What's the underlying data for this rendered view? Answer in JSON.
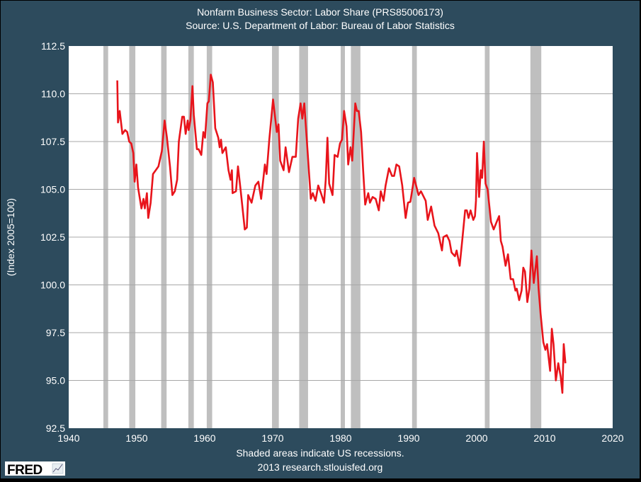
{
  "chart_data": {
    "type": "line",
    "title": "Nonfarm Business Sector: Labor Share (PRS85006173)",
    "subtitle": "Source: U.S. Department of Labor: Bureau of Labor Statistics",
    "xlabel": "",
    "ylabel": "(Index 2005=100)",
    "xlim": [
      1940,
      2020
    ],
    "ylim": [
      92.5,
      112.5
    ],
    "xticks": [
      "1940",
      "1950",
      "1960",
      "1970",
      "1980",
      "1990",
      "2000",
      "2010",
      "2020"
    ],
    "yticks": [
      "92.5",
      "95.0",
      "97.5",
      "100.0",
      "102.5",
      "105.0",
      "107.5",
      "110.0",
      "112.5"
    ],
    "grid": "horizontal",
    "colors": {
      "line": "#e8141b",
      "recession": "#bfbfbf",
      "background": "#2d4b5d",
      "plot": "#ffffff",
      "grid": "#a8a8a8"
    },
    "recessions": [
      [
        1945.1,
        1945.8
      ],
      [
        1948.9,
        1949.8
      ],
      [
        1953.6,
        1954.4
      ],
      [
        1957.6,
        1958.4
      ],
      [
        1960.3,
        1961.1
      ],
      [
        1969.9,
        1970.9
      ],
      [
        1973.9,
        1975.2
      ],
      [
        1980.0,
        1980.5
      ],
      [
        1981.5,
        1982.9
      ],
      [
        1990.5,
        1991.2
      ],
      [
        2001.2,
        2001.9
      ],
      [
        2007.9,
        2009.5
      ]
    ],
    "series": [
      {
        "x": [
          1947.15,
          1947.25,
          1947.5,
          1947.9,
          1948.3,
          1948.6,
          1948.9,
          1949.2,
          1949.5,
          1949.7,
          1949.95,
          1950.2,
          1950.7,
          1951.0,
          1951.2,
          1951.5,
          1951.7,
          1952.05,
          1952.4,
          1952.8,
          1953.2,
          1953.7,
          1954.1,
          1954.45,
          1954.9,
          1955.25,
          1955.6,
          1955.95,
          1956.2,
          1956.7,
          1956.95,
          1957.2,
          1957.5,
          1957.65,
          1957.9,
          1958.2,
          1958.4,
          1958.85,
          1959.1,
          1959.5,
          1959.8,
          1960.05,
          1960.4,
          1960.6,
          1960.9,
          1961.2,
          1961.55,
          1962.0,
          1962.2,
          1962.4,
          1962.6,
          1963.1,
          1963.5,
          1963.8,
          1964.0,
          1964.1,
          1964.6,
          1964.9,
          1965.3,
          1965.9,
          1966.2,
          1966.4,
          1966.9,
          1967.45,
          1967.9,
          1968.3,
          1968.85,
          1969.1,
          1969.5,
          1970.05,
          1970.6,
          1970.85,
          1971.1,
          1971.6,
          1971.9,
          1972.4,
          1972.9,
          1973.4,
          1973.75,
          1974.1,
          1974.35,
          1974.65,
          1975.05,
          1975.6,
          1975.9,
          1976.3,
          1976.7,
          1977.1,
          1977.55,
          1977.8,
          1978.05,
          1978.3,
          1978.8,
          1979.1,
          1979.55,
          1979.9,
          1980.2,
          1980.5,
          1980.85,
          1981.1,
          1981.45,
          1981.7,
          1982.15,
          1982.4,
          1982.65,
          1983.0,
          1983.3,
          1983.6,
          1984.05,
          1984.3,
          1984.7,
          1985.15,
          1985.6,
          1985.9,
          1986.3,
          1986.6,
          1987.1,
          1987.55,
          1987.85,
          1988.2,
          1988.6,
          1989.05,
          1989.55,
          1989.9,
          1990.25,
          1990.8,
          1991.45,
          1991.8,
          1992.5,
          1992.8,
          1993.3,
          1993.8,
          1994.35,
          1994.9,
          1995.1,
          1995.6,
          1996.0,
          1996.3,
          1996.8,
          1997.05,
          1997.5,
          1997.9,
          1998.3,
          1998.55,
          1998.8,
          1999.1,
          1999.5,
          1999.75,
          1999.9,
          2000.05,
          2000.35,
          2000.6,
          2000.8,
          2001.05,
          2001.3,
          2001.6,
          2002.1,
          2002.5,
          2002.95,
          2003.3,
          2003.55,
          2003.8,
          2004.25,
          2004.6,
          2005.0,
          2005.35,
          2005.7,
          2005.9,
          2006.25,
          2006.6,
          2006.85,
          2007.1,
          2007.45,
          2007.75,
          2008.05,
          2008.4,
          2008.85,
          2009.1,
          2009.4,
          2009.8,
          2010.1,
          2010.35,
          2010.8,
          2011.05,
          2011.3,
          2011.65,
          2012.0,
          2012.35,
          2012.6,
          2012.8,
          2013.05
        ],
        "values": [
          110.7,
          108.5,
          109.1,
          107.9,
          108.1,
          108.0,
          107.5,
          107.4,
          106.9,
          105.4,
          106.3,
          105.1,
          104.0,
          104.5,
          104.0,
          104.8,
          103.5,
          104.3,
          105.8,
          106.0,
          106.2,
          107.0,
          108.6,
          107.7,
          106.2,
          104.7,
          104.9,
          105.5,
          107.5,
          108.8,
          108.8,
          107.9,
          108.6,
          108.1,
          108.6,
          110.4,
          108.9,
          107.1,
          107.1,
          106.8,
          108.0,
          107.7,
          109.5,
          109.6,
          111.0,
          110.6,
          108.2,
          107.7,
          107.2,
          107.6,
          106.9,
          107.2,
          106.0,
          105.5,
          106.0,
          104.8,
          104.9,
          106.2,
          104.9,
          102.9,
          103.0,
          104.7,
          104.3,
          105.2,
          105.4,
          104.5,
          106.3,
          105.8,
          107.6,
          109.7,
          108.0,
          108.4,
          106.5,
          106.0,
          107.2,
          105.9,
          106.7,
          106.7,
          108.7,
          109.5,
          108.7,
          109.5,
          107.4,
          104.5,
          104.8,
          104.4,
          105.2,
          104.8,
          104.3,
          105.5,
          107.7,
          105.3,
          104.7,
          106.8,
          106.7,
          107.4,
          107.6,
          109.1,
          108.3,
          106.3,
          107.2,
          106.5,
          109.5,
          109.1,
          109.1,
          108.0,
          106.0,
          104.2,
          104.8,
          104.3,
          104.6,
          104.5,
          103.9,
          104.9,
          104.4,
          105.2,
          106.1,
          105.7,
          105.7,
          106.3,
          106.2,
          105.2,
          103.5,
          104.3,
          104.35,
          105.6,
          104.7,
          104.9,
          104.4,
          103.4,
          104.1,
          103.1,
          102.7,
          101.8,
          102.5,
          102.6,
          102.3,
          101.7,
          101.5,
          101.8,
          101.0,
          102.4,
          103.9,
          103.9,
          103.5,
          103.9,
          103.4,
          103.6,
          104.4,
          106.9,
          104.6,
          106.0,
          105.6,
          107.5,
          105.3,
          105.0,
          103.3,
          102.9,
          103.3,
          103.6,
          102.3,
          102.0,
          101.0,
          101.6,
          100.3,
          100.3,
          99.7,
          99.8,
          99.2,
          99.7,
          100.9,
          100.7,
          99.1,
          99.8,
          101.8,
          100.1,
          101.5,
          99.8,
          98.5,
          97.0,
          96.6,
          96.9,
          95.5,
          97.7,
          96.9,
          95.0,
          95.9,
          95.2,
          94.35,
          96.9,
          95.9
        ]
      }
    ],
    "annotations": [
      "Shaded areas indicate US recessions.",
      "2013 research.stlouisfed.org"
    ],
    "logo": "FRED"
  }
}
